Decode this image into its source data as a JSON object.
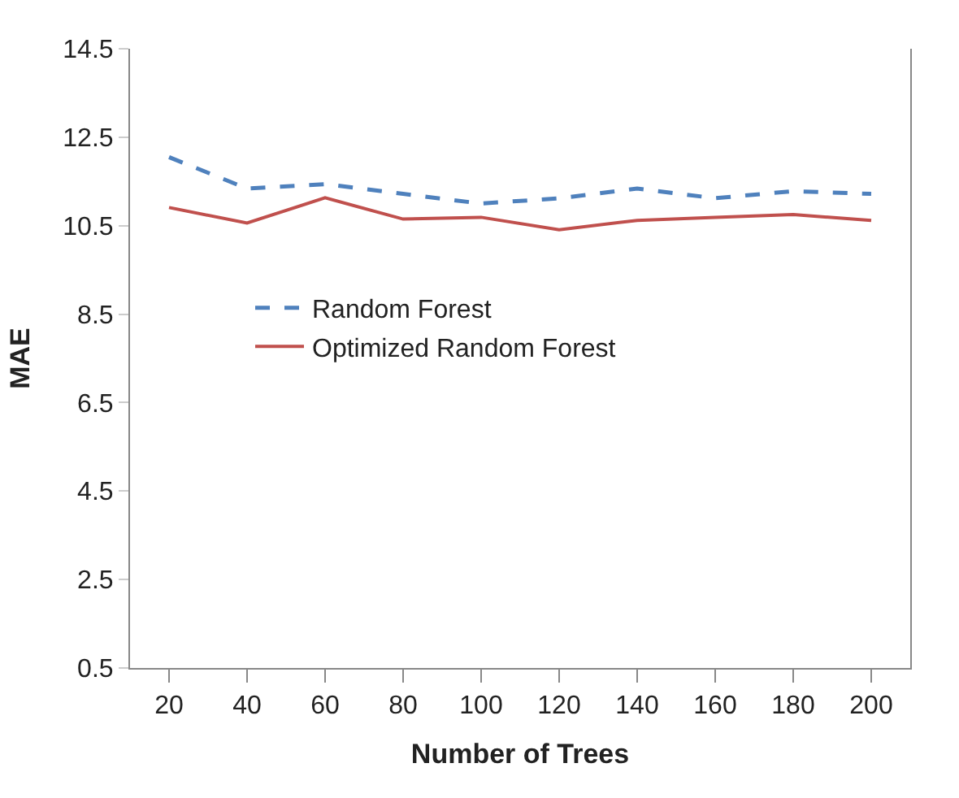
{
  "chart_data": {
    "type": "line",
    "xlabel": "Number of Trees",
    "ylabel": "MAE",
    "categories": [
      "20",
      "40",
      "60",
      "80",
      "100",
      "120",
      "140",
      "160",
      "180",
      "200"
    ],
    "series": [
      {
        "name": "Random Forest",
        "color": "#4f81bd",
        "line_style": "dashed",
        "values": [
          12.05,
          11.34,
          11.44,
          11.22,
          11.0,
          11.12,
          11.34,
          11.12,
          11.28,
          11.22
        ]
      },
      {
        "name": "Optimized Random Forest",
        "color": "#c0504d",
        "line_style": "solid",
        "values": [
          10.91,
          10.56,
          11.13,
          10.65,
          10.69,
          10.41,
          10.62,
          10.69,
          10.75,
          10.62
        ]
      }
    ],
    "ylim": [
      0.5,
      14.5
    ],
    "yticks": [
      0.5,
      2.5,
      4.5,
      6.5,
      8.5,
      10.5,
      12.5,
      14.5
    ],
    "legend": "left"
  }
}
